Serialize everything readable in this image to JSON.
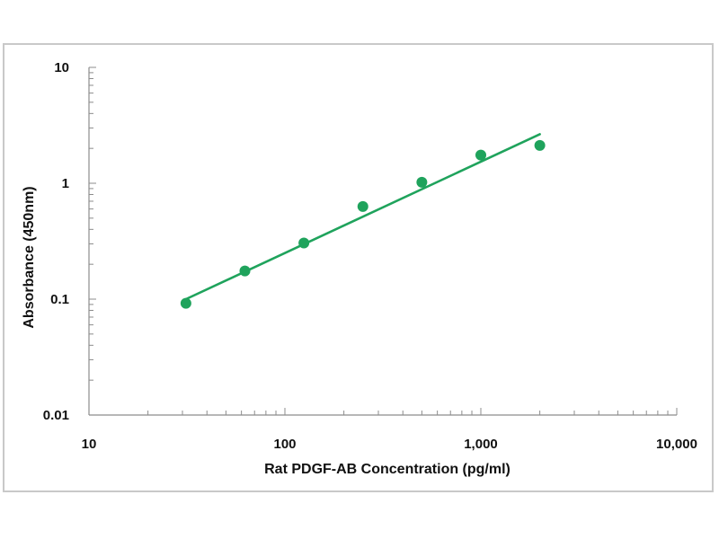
{
  "chart_data": {
    "type": "scatter",
    "title": "",
    "xlabel": "Rat PDGF-AB Concentration (pg/ml)",
    "ylabel": "Absorbance (450nm)",
    "x_scale": "log",
    "y_scale": "log",
    "xlim": [
      10,
      10000
    ],
    "ylim": [
      0.01,
      10
    ],
    "x_tick_values": [
      10,
      100,
      1000,
      10000
    ],
    "x_tick_labels": [
      "10",
      "100",
      "1,000",
      "10,000"
    ],
    "y_tick_values": [
      0.01,
      0.1,
      1,
      10
    ],
    "y_tick_labels": [
      "0.01",
      "0.1",
      "1",
      "10"
    ],
    "grid": false,
    "legend": "none",
    "series": [
      {
        "x": [
          31.25,
          62.5,
          125,
          250,
          500,
          1000,
          2000
        ],
        "y": [
          0.092,
          0.175,
          0.305,
          0.63,
          1.02,
          1.75,
          2.12
        ],
        "marker": "circle",
        "color": "#1fa35c"
      }
    ],
    "fit_line": {
      "x": [
        31.25,
        2000
      ],
      "y": [
        0.1,
        2.65
      ],
      "color": "#1fa35c"
    }
  }
}
